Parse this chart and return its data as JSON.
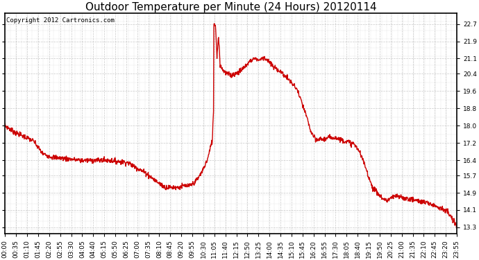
{
  "title": "Outdoor Temperature per Minute (24 Hours) 20120114",
  "copyright_text": "Copyright 2012 Cartronics.com",
  "line_color": "#cc0000",
  "background_color": "#ffffff",
  "grid_color": "#bbbbbb",
  "yticks": [
    13.3,
    14.1,
    14.9,
    15.7,
    16.4,
    17.2,
    18.0,
    18.8,
    19.6,
    20.4,
    21.1,
    21.9,
    22.7
  ],
  "ylim": [
    13.0,
    23.2
  ],
  "xtick_labels": [
    "00:00",
    "00:35",
    "01:10",
    "01:45",
    "02:20",
    "02:55",
    "03:30",
    "04:05",
    "04:40",
    "05:15",
    "05:50",
    "06:25",
    "07:00",
    "07:35",
    "08:10",
    "08:45",
    "09:20",
    "09:55",
    "10:30",
    "11:05",
    "11:40",
    "12:15",
    "12:50",
    "13:25",
    "14:00",
    "14:35",
    "15:10",
    "15:45",
    "16:20",
    "16:55",
    "17:30",
    "18:05",
    "18:40",
    "19:15",
    "19:50",
    "20:25",
    "21:00",
    "21:35",
    "22:10",
    "22:45",
    "23:20",
    "23:55"
  ],
  "title_fontsize": 11,
  "tick_fontsize": 6.5,
  "copyright_fontsize": 6.5,
  "line_width": 1.0,
  "figwidth": 6.9,
  "figheight": 3.75,
  "dpi": 100
}
